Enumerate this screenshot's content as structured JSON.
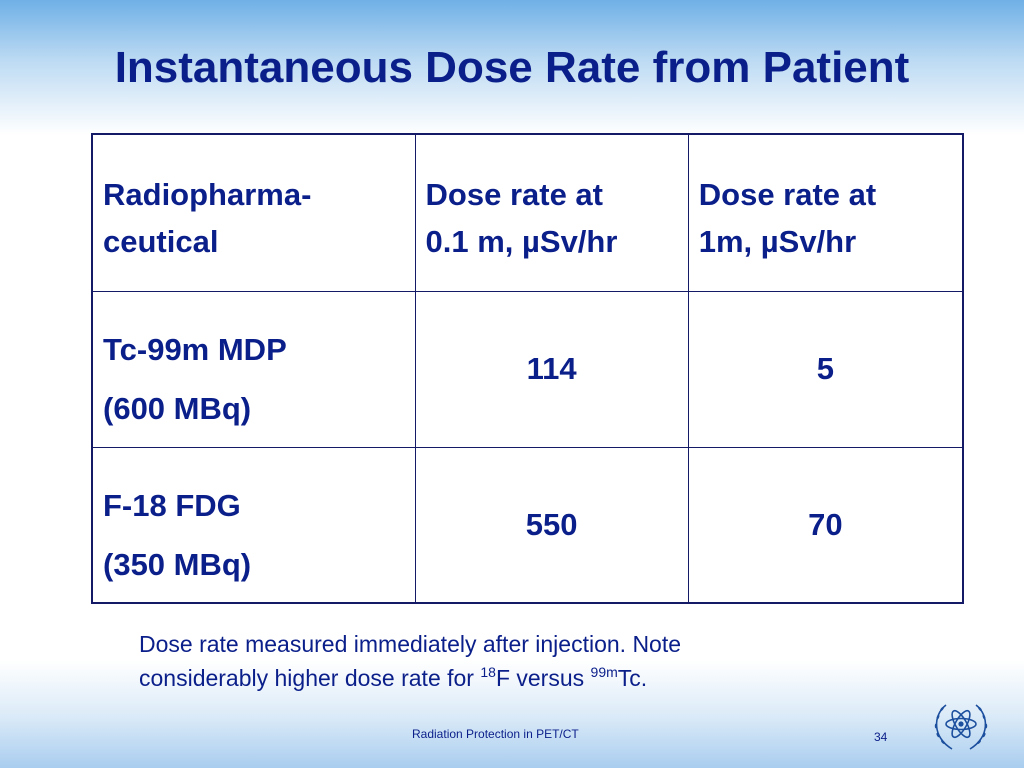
{
  "slide": {
    "title": "Instantaneous Dose Rate from Patient"
  },
  "table": {
    "header": {
      "col1": [
        "Radiopharma-",
        "ceutical"
      ],
      "col2": [
        "Dose rate at",
        "0.1 m, µSv/hr"
      ],
      "col3": [
        "Dose rate at",
        "1m, µSv/hr"
      ]
    },
    "rows": [
      {
        "name": [
          "Tc-99m MDP",
          "(600 MBq)"
        ],
        "rate_01m": "114",
        "rate_1m": "5"
      },
      {
        "name": [
          "F-18 FDG",
          "(350 MBq)"
        ],
        "rate_01m": "550",
        "rate_1m": "70"
      }
    ]
  },
  "note": {
    "line1": "Dose rate measured immediately after injection.  Note",
    "line2_prefix": "considerably higher dose rate for ",
    "sup1": "18",
    "mid": "F versus ",
    "sup2": "99m",
    "suffix": "Tc."
  },
  "footer": {
    "text": "Radiation Protection in PET/CT",
    "page_number": "34"
  },
  "colors": {
    "title": "#0b1f8a",
    "table_border": "#141a66",
    "logo": "#1c4f9e"
  },
  "icons": {
    "logo": "iaea-atom-olive-wreath-logo"
  }
}
